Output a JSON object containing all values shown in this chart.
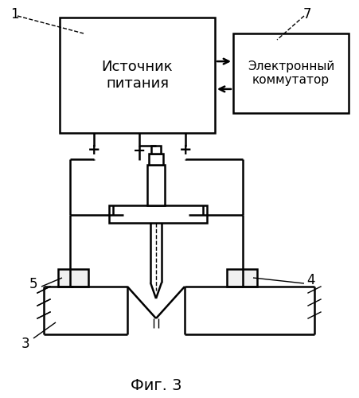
{
  "background_color": "#ffffff",
  "fig_width": 4.51,
  "fig_height": 5.0,
  "dpi": 100,
  "title": "Фиг. 3",
  "title_fontsize": 14,
  "box1_text": "Источник\nпитания",
  "box7_text": "Электронный\nкоммутатор",
  "label1": "1",
  "label7": "7",
  "label3": "3",
  "label4": "4",
  "label5": "5",
  "line_color": "#000000",
  "lw": 1.8,
  "lw_thin": 1.0
}
